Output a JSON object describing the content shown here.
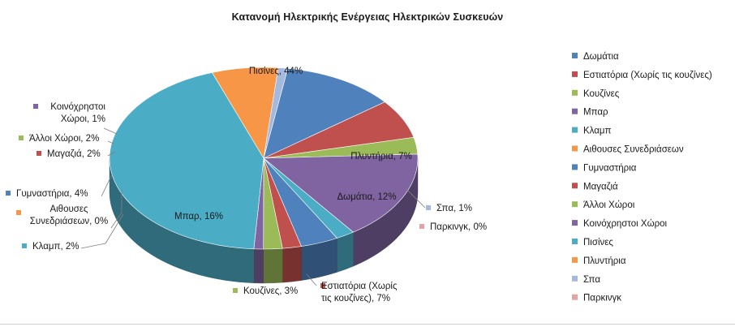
{
  "chart_data": {
    "type": "pie",
    "title": "Κατανομή Ηλεκτρικής Ενέργειας Ηλεκτρικών Συσκευών",
    "categories": [
      "Δωμάτια",
      "Εστιατόρια (Χωρίς τις κουζίνες)",
      "Κουζίνες",
      "Μπαρ",
      "Κλαμπ",
      "Αιθουσες Συνεδριάσεων",
      "Γυμναστήρια",
      "Μαγαζιά",
      "Άλλοι Χώροι",
      "Κοινόχρηστοι Χώροι",
      "Πισίνες",
      "Πλυντήρια",
      "Σπα",
      "Παρκινγκ"
    ],
    "values": [
      12,
      7,
      3,
      16,
      2,
      0,
      4,
      2,
      2,
      1,
      44,
      7,
      1,
      0
    ],
    "colors": [
      "#4f81bd",
      "#c0504d",
      "#9bbb59",
      "#8064a2",
      "#4bacc6",
      "#f79646",
      "#4f81bd",
      "#c0504d",
      "#9bbb59",
      "#8064a2",
      "#4bacc6",
      "#f79646",
      "#a5b9df",
      "#e2a5a4"
    ],
    "data_labels": [
      [
        "Δωμάτια, 12%"
      ],
      [
        "Εστιατόρια (Χωρίς",
        "τις κουζίνες), 7%"
      ],
      [
        "Κουζίνες, 3%"
      ],
      [
        "Μπαρ, 16%"
      ],
      [
        "Κλαμπ, 2%"
      ],
      [
        "Αιθουσες",
        "Συνεδριάσεων, 0%"
      ],
      [
        "Γυμναστήρια, 4%"
      ],
      [
        "Μαγαζιά, 2%"
      ],
      [
        "Άλλοι Χώροι, 2%"
      ],
      [
        "Κοινόχρηστοι",
        "Χώροι, 1%"
      ],
      [
        "Πισίνες, 44%"
      ],
      [
        "Πλυντήρια, 7%"
      ],
      [
        "Σπα, 1%"
      ],
      [
        "Παρκινγκ, 0%"
      ]
    ],
    "legend": {
      "position": "right"
    },
    "three_d": true
  }
}
